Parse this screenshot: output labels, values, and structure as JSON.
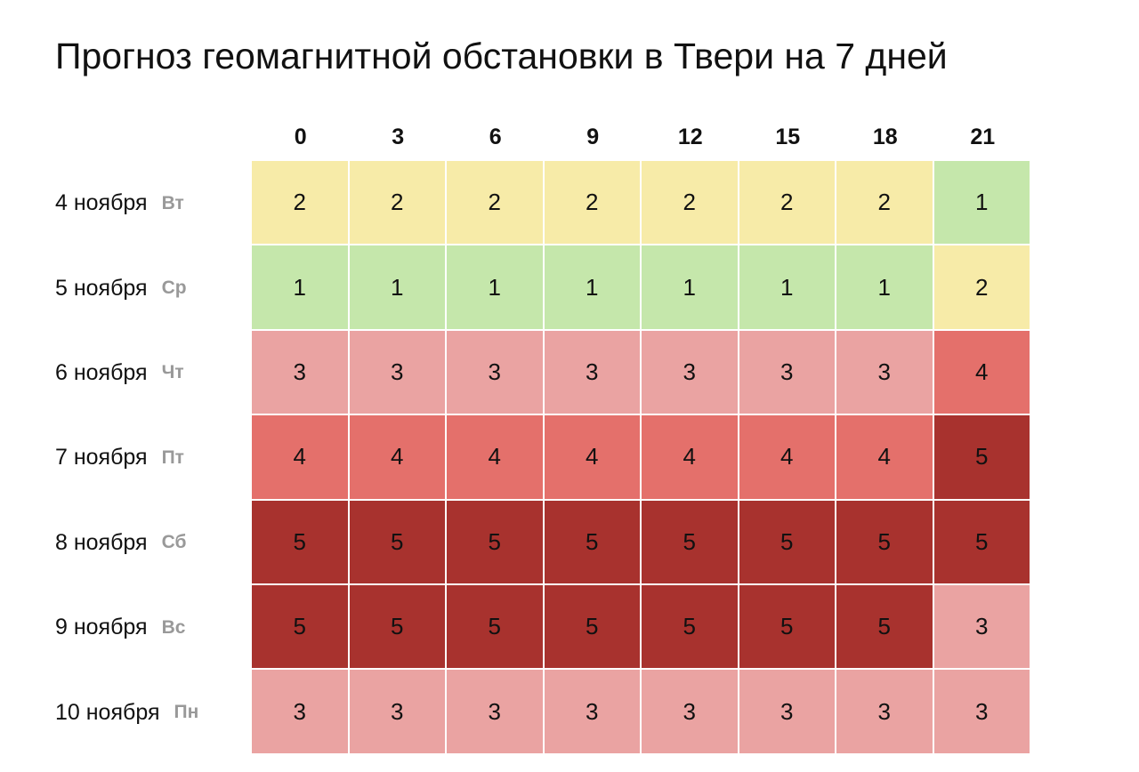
{
  "chart_data": {
    "type": "heatmap",
    "title": "Прогноз геомагнитной обстановки в Твери на 7 дней",
    "columns": [
      "0",
      "3",
      "6",
      "9",
      "12",
      "15",
      "18",
      "21"
    ],
    "rows": [
      {
        "date": "4 ноября",
        "weekday": "Вт",
        "values": [
          2,
          2,
          2,
          2,
          2,
          2,
          2,
          1
        ]
      },
      {
        "date": "5 ноября",
        "weekday": "Ср",
        "values": [
          1,
          1,
          1,
          1,
          1,
          1,
          1,
          2
        ]
      },
      {
        "date": "6 ноября",
        "weekday": "Чт",
        "values": [
          3,
          3,
          3,
          3,
          3,
          3,
          3,
          4
        ]
      },
      {
        "date": "7 ноября",
        "weekday": "Пт",
        "values": [
          4,
          4,
          4,
          4,
          4,
          4,
          4,
          5
        ]
      },
      {
        "date": "8 ноября",
        "weekday": "Сб",
        "values": [
          5,
          5,
          5,
          5,
          5,
          5,
          5,
          5
        ]
      },
      {
        "date": "9 ноября",
        "weekday": "Вс",
        "values": [
          5,
          5,
          5,
          5,
          5,
          5,
          5,
          3
        ]
      },
      {
        "date": "10 ноября",
        "weekday": "Пн",
        "values": [
          3,
          3,
          3,
          3,
          3,
          3,
          3,
          3
        ]
      }
    ],
    "level_colors": {
      "1": "#c5e7ab",
      "2": "#f7eba8",
      "3": "#eaa3a2",
      "4": "#e4706b",
      "5": "#a8322e"
    }
  }
}
